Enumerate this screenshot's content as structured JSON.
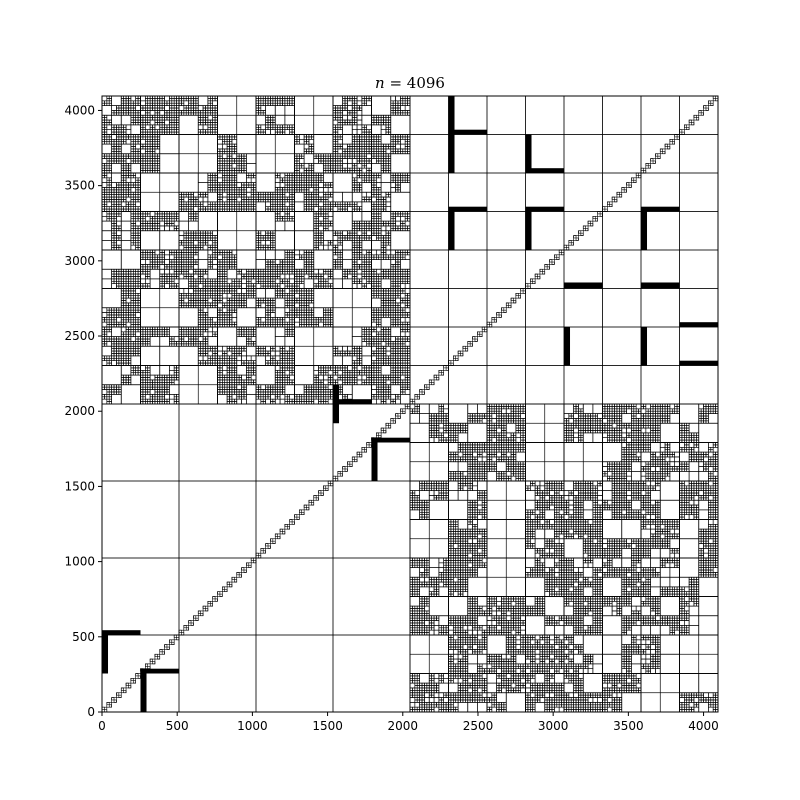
{
  "chart_data": {
    "type": "heatmap",
    "title": "n = 4096",
    "title_parts": {
      "var": "n",
      "eq": " = ",
      "value": "4096"
    },
    "xlabel": "",
    "ylabel": "",
    "xlim": [
      0,
      4096
    ],
    "ylim": [
      0,
      4096
    ],
    "xticks": [
      0,
      500,
      1000,
      1500,
      2000,
      2500,
      3000,
      3500,
      4000
    ],
    "yticks": [
      0,
      500,
      1000,
      1500,
      2000,
      2500,
      3000,
      3500,
      4000
    ],
    "grid": false,
    "legend": "none",
    "mark_color": "#000000",
    "background": "#ffffff",
    "description_of_marks": "hierarchical block partition of a 4096x4096 matrix",
    "dense_blocks": [
      [
        2304,
        3840,
        256,
        32
      ],
      [
        2304,
        3584,
        40,
        256
      ],
      [
        2304,
        3840,
        40,
        256
      ],
      [
        2816,
        3584,
        40,
        256
      ],
      [
        2816,
        3584,
        256,
        32
      ],
      [
        2304,
        3072,
        40,
        256
      ],
      [
        2304,
        3328,
        256,
        32
      ],
      [
        2816,
        3072,
        40,
        256
      ],
      [
        2816,
        3328,
        256,
        32
      ],
      [
        3072,
        2304,
        40,
        256
      ],
      [
        3072,
        2816,
        256,
        40
      ],
      [
        3584,
        2304,
        40,
        256
      ],
      [
        3584,
        2816,
        256,
        40
      ],
      [
        3584,
        3072,
        40,
        256
      ],
      [
        3584,
        3328,
        256,
        32
      ],
      [
        3840,
        2304,
        256,
        32
      ],
      [
        3840,
        2560,
        256,
        32
      ],
      [
        1536,
        1920,
        40,
        256
      ],
      [
        1536,
        2048,
        256,
        32
      ],
      [
        1792,
        1536,
        40,
        256
      ],
      [
        1792,
        1792,
        256,
        32
      ],
      [
        0,
        256,
        40,
        256
      ],
      [
        0,
        512,
        256,
        32
      ],
      [
        256,
        0,
        40,
        256
      ],
      [
        256,
        256,
        256,
        32
      ]
    ],
    "coarse_blocks": [
      [
        0,
        0,
        2048,
        2048,
        512
      ],
      [
        2048,
        2048,
        2048,
        2048,
        256
      ],
      [
        2048,
        0,
        2048,
        2048,
        128
      ],
      [
        0,
        2048,
        2048,
        2048,
        128
      ]
    ]
  }
}
